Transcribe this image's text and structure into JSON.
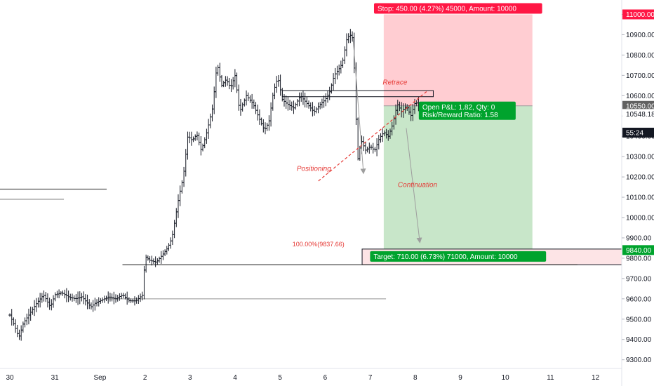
{
  "chart_data": {
    "type": "bar",
    "x_ticks": [
      "30",
      "31",
      "Sep",
      "2",
      "3",
      "4",
      "5",
      "6",
      "7",
      "8",
      "9",
      "10",
      "11",
      "12"
    ],
    "y_ticks": [
      "11000.00",
      "10900.00",
      "10800.00",
      "10700.00",
      "10600.00",
      "10500.00",
      "10400.00",
      "10300.00",
      "10200.00",
      "10100.00",
      "10000.00",
      "9900.00",
      "9800.00",
      "9700.00",
      "9600.00",
      "9500.00",
      "9400.00",
      "9300.00"
    ],
    "ylim": [
      9220,
      11040
    ],
    "price_path": [
      {
        "d": 0.0,
        "p": 9520
      },
      {
        "d": 0.1,
        "p": 9470
      },
      {
        "d": 0.2,
        "p": 9410
      },
      {
        "d": 0.3,
        "p": 9480
      },
      {
        "d": 0.45,
        "p": 9530
      },
      {
        "d": 0.6,
        "p": 9580
      },
      {
        "d": 0.75,
        "p": 9620
      },
      {
        "d": 0.9,
        "p": 9560
      },
      {
        "d": 1.0,
        "p": 9620
      },
      {
        "d": 1.15,
        "p": 9630
      },
      {
        "d": 1.3,
        "p": 9610
      },
      {
        "d": 1.45,
        "p": 9600
      },
      {
        "d": 1.6,
        "p": 9610
      },
      {
        "d": 1.8,
        "p": 9560
      },
      {
        "d": 1.9,
        "p": 9580
      },
      {
        "d": 2.0,
        "p": 9590
      },
      {
        "d": 2.1,
        "p": 9600
      },
      {
        "d": 2.2,
        "p": 9610
      },
      {
        "d": 2.35,
        "p": 9600
      },
      {
        "d": 2.5,
        "p": 9620
      },
      {
        "d": 2.65,
        "p": 9590
      },
      {
        "d": 2.8,
        "p": 9590
      },
      {
        "d": 2.95,
        "p": 9620
      },
      {
        "d": 3.0,
        "p": 9810
      },
      {
        "d": 3.1,
        "p": 9790
      },
      {
        "d": 3.25,
        "p": 9780
      },
      {
        "d": 3.4,
        "p": 9820
      },
      {
        "d": 3.5,
        "p": 9850
      },
      {
        "d": 3.6,
        "p": 9900
      },
      {
        "d": 3.75,
        "p": 10100
      },
      {
        "d": 3.85,
        "p": 10200
      },
      {
        "d": 3.95,
        "p": 10400
      },
      {
        "d": 4.05,
        "p": 10380
      },
      {
        "d": 4.15,
        "p": 10410
      },
      {
        "d": 4.25,
        "p": 10330
      },
      {
        "d": 4.35,
        "p": 10400
      },
      {
        "d": 4.5,
        "p": 10540
      },
      {
        "d": 4.6,
        "p": 10760
      },
      {
        "d": 4.7,
        "p": 10650
      },
      {
        "d": 4.8,
        "p": 10680
      },
      {
        "d": 4.9,
        "p": 10640
      },
      {
        "d": 5.0,
        "p": 10700
      },
      {
        "d": 5.1,
        "p": 10520
      },
      {
        "d": 5.25,
        "p": 10600
      },
      {
        "d": 5.4,
        "p": 10560
      },
      {
        "d": 5.55,
        "p": 10480
      },
      {
        "d": 5.65,
        "p": 10430
      },
      {
        "d": 5.75,
        "p": 10470
      },
      {
        "d": 5.85,
        "p": 10620
      },
      {
        "d": 5.95,
        "p": 10690
      },
      {
        "d": 6.05,
        "p": 10580
      },
      {
        "d": 6.15,
        "p": 10560
      },
      {
        "d": 6.3,
        "p": 10540
      },
      {
        "d": 6.45,
        "p": 10600
      },
      {
        "d": 6.6,
        "p": 10560
      },
      {
        "d": 6.75,
        "p": 10520
      },
      {
        "d": 6.9,
        "p": 10560
      },
      {
        "d": 7.0,
        "p": 10580
      },
      {
        "d": 7.1,
        "p": 10620
      },
      {
        "d": 7.2,
        "p": 10700
      },
      {
        "d": 7.3,
        "p": 10730
      },
      {
        "d": 7.38,
        "p": 10760
      },
      {
        "d": 7.48,
        "p": 10880
      },
      {
        "d": 7.55,
        "p": 10900
      },
      {
        "d": 7.62,
        "p": 10880
      },
      {
        "d": 7.72,
        "p": 10280
      },
      {
        "d": 7.8,
        "p": 10380
      },
      {
        "d": 7.9,
        "p": 10330
      },
      {
        "d": 8.0,
        "p": 10350
      },
      {
        "d": 8.1,
        "p": 10330
      },
      {
        "d": 8.2,
        "p": 10390
      },
      {
        "d": 8.3,
        "p": 10420
      },
      {
        "d": 8.4,
        "p": 10400
      },
      {
        "d": 8.5,
        "p": 10460
      },
      {
        "d": 8.6,
        "p": 10560
      },
      {
        "d": 8.7,
        "p": 10520
      },
      {
        "d": 8.8,
        "p": 10550
      },
      {
        "d": 8.9,
        "p": 10500
      },
      {
        "d": 9.0,
        "p": 10570
      },
      {
        "d": 9.1,
        "p": 10550
      }
    ],
    "horizontal_levels": [
      {
        "price": 10140,
        "from_day": -1.0,
        "to_day": 2.15,
        "color": "#555555"
      },
      {
        "price": 10090,
        "from_day": -1.0,
        "to_day": 1.2,
        "color": "#888888"
      },
      {
        "price": 9768,
        "from_day": 2.5,
        "to_day": 12.6,
        "color": "#333333"
      },
      {
        "price": 9600,
        "from_day": 2.1,
        "to_day": 8.35,
        "color": "#9e9e9e"
      }
    ],
    "zone_boxes": [
      {
        "low": 10595,
        "high": 10625,
        "from_day": 6.05,
        "to_day": 9.4
      },
      {
        "low": 9768,
        "high": 9845,
        "from_day": 7.82,
        "to_day": 13.6
      }
    ],
    "position": {
      "entry": 10550.0,
      "stop": 11000.0,
      "target": 9840.0,
      "from_day": 8.3,
      "to_day": 11.6
    },
    "lines": {
      "ascending_trendline": {
        "from": {
          "d": 6.85,
          "p": 10180
        },
        "to": {
          "d": 9.25,
          "p": 10620
        }
      },
      "retrace_arrow": {
        "from": {
          "d": 7.62,
          "p": 10880
        },
        "to": {
          "d": 7.85,
          "p": 10220
        }
      },
      "continuation_arrow": {
        "from": {
          "d": 8.8,
          "p": 10440
        },
        "to": {
          "d": 9.1,
          "p": 9880
        }
      }
    },
    "annotations": {
      "retrace": "Retrace",
      "positioning": "Positioning",
      "continuation": "Continuation",
      "fib": "100.00%(9837.66)"
    },
    "annotation_anchors": {
      "retrace": {
        "d": 8.55,
        "p": 10655
      },
      "positioning": {
        "d": 6.75,
        "p": 10230
      },
      "continuation": {
        "d": 9.05,
        "p": 10150
      },
      "fib": {
        "d": 6.85,
        "p": 9858
      }
    },
    "info_labels": {
      "stop": "Stop: 450.00 (4.27%) 45000, Amount: 10000",
      "target": "Target: 710.00 (6.73%) 71000, Amount: 10000",
      "pnl": "Open P&L: 1.82, Qty: 0",
      "rr": "Risk/Reward Ratio: 1.58"
    },
    "price_badges": [
      {
        "label": "11000.00",
        "price": 11000,
        "bg": "#ff1744",
        "fg": "#ffffff"
      },
      {
        "label": "10550.00",
        "price": 10550,
        "bg": "#616161",
        "fg": "#ffffff"
      },
      {
        "label": "10548.18",
        "price": 10510,
        "bg": "#ffffff",
        "fg": "#131722"
      },
      {
        "label": "55:24",
        "price": 10418,
        "bg": "#131722",
        "fg": "#ffffff"
      },
      {
        "label": "9840.00",
        "price": 9840,
        "bg": "#00a32d",
        "fg": "#ffffff"
      }
    ],
    "colors": {
      "bars": "#131722",
      "risk_zone": "#ffcdd2",
      "reward_zone": "#c8e6c9",
      "zone_box_fill": "#fde4e6",
      "label_red": "#ff1744",
      "label_green": "#00a32d",
      "annotation_red": "#e53935",
      "trendline": "#e53935",
      "arrow": "#9e9e9e"
    }
  }
}
